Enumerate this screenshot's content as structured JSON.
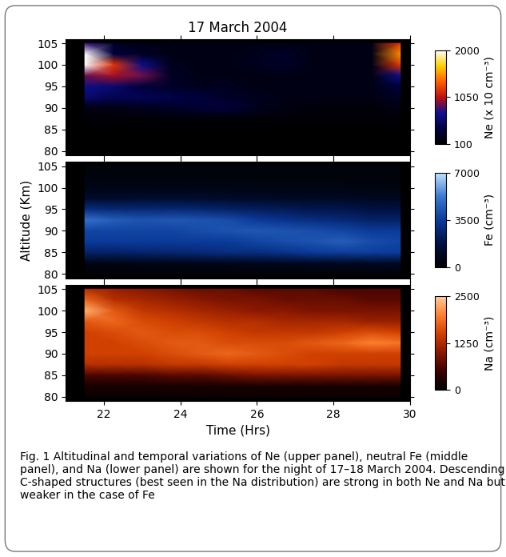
{
  "chart_data": [
    {
      "type": "heatmap",
      "title": "17 March 2004",
      "tick_labels": "y",
      "x": [
        21.5,
        22.25,
        23,
        23.75,
        24.5,
        25.25,
        26,
        26.75,
        27.5,
        28.25,
        29,
        29.75
      ],
      "y": [
        80,
        82.5,
        85,
        87.5,
        90,
        92.5,
        95,
        97.5,
        100,
        102.5,
        105
      ],
      "xlim": [
        21,
        30
      ],
      "xticks": [
        22,
        24,
        26,
        28,
        30
      ],
      "ylim": [
        79,
        106
      ],
      "yticks": [
        80,
        85,
        90,
        95,
        100,
        105
      ],
      "colorbar_label": "Ne (x 10 cm⁻³)",
      "colorbar_range": [
        100,
        2000
      ],
      "colorbar_ticks": [
        100,
        1050,
        2000
      ],
      "values": [
        [
          100,
          100,
          100,
          100,
          100,
          100,
          100,
          100,
          100,
          100,
          100,
          100
        ],
        [
          100,
          100,
          100,
          100,
          100,
          100,
          100,
          100,
          100,
          100,
          100,
          100
        ],
        [
          120,
          120,
          120,
          120,
          120,
          120,
          120,
          120,
          120,
          120,
          120,
          120
        ],
        [
          130,
          130,
          130,
          130,
          130,
          130,
          130,
          130,
          130,
          130,
          130,
          130
        ],
        [
          200,
          200,
          250,
          300,
          350,
          400,
          250,
          200,
          150,
          150,
          150,
          200
        ],
        [
          600,
          500,
          500,
          450,
          400,
          300,
          250,
          200,
          200,
          200,
          200,
          300
        ],
        [
          700,
          600,
          400,
          300,
          250,
          250,
          200,
          200,
          200,
          200,
          200,
          400
        ],
        [
          900,
          1000,
          900,
          300,
          200,
          200,
          200,
          200,
          200,
          200,
          200,
          700
        ],
        [
          2000,
          1200,
          700,
          250,
          200,
          200,
          250,
          300,
          200,
          200,
          200,
          1200
        ],
        [
          2000,
          400,
          300,
          200,
          200,
          200,
          250,
          300,
          200,
          200,
          200,
          1500
        ],
        [
          800,
          300,
          200,
          200,
          200,
          200,
          200,
          200,
          200,
          200,
          200,
          1200
        ]
      ]
    },
    {
      "type": "heatmap",
      "ylabel": "Altitude (Km)",
      "tick_labels": "y",
      "x": [
        21.5,
        22.25,
        23,
        23.75,
        24.5,
        25.25,
        26,
        26.75,
        27.5,
        28.25,
        29,
        29.75
      ],
      "y": [
        80,
        82.5,
        85,
        87.5,
        90,
        92.5,
        95,
        97.5,
        100,
        102.5,
        105
      ],
      "xlim": [
        21,
        30
      ],
      "xticks": [
        22,
        24,
        26,
        28,
        30
      ],
      "ylim": [
        79,
        106
      ],
      "yticks": [
        80,
        85,
        90,
        95,
        100,
        105
      ],
      "colorbar_label": "Fe (cm⁻³)",
      "colorbar_range": [
        0,
        7000
      ],
      "colorbar_ticks": [
        0,
        3500,
        7000
      ],
      "values": [
        [
          200,
          200,
          200,
          200,
          200,
          200,
          200,
          200,
          200,
          200,
          200,
          200
        ],
        [
          500,
          500,
          600,
          600,
          700,
          700,
          800,
          800,
          900,
          900,
          1000,
          1000
        ],
        [
          2500,
          2500,
          2600,
          2700,
          2800,
          3000,
          3000,
          3200,
          3500,
          3600,
          3600,
          3500
        ],
        [
          3500,
          3500,
          3500,
          3500,
          3500,
          3500,
          3800,
          4000,
          4200,
          4500,
          4000,
          3800
        ],
        [
          3800,
          3800,
          3800,
          3800,
          4000,
          4200,
          4300,
          4200,
          4000,
          3800,
          3500,
          3500
        ],
        [
          5000,
          4500,
          4200,
          4300,
          4200,
          4000,
          3500,
          3200,
          3000,
          2800,
          2500,
          2500
        ],
        [
          3000,
          2800,
          2800,
          2800,
          2700,
          2500,
          2300,
          2200,
          2000,
          2000,
          1800,
          1800
        ],
        [
          1200,
          1200,
          1300,
          1300,
          1300,
          1200,
          1100,
          1000,
          1000,
          1000,
          900,
          900
        ],
        [
          600,
          600,
          600,
          600,
          600,
          500,
          500,
          500,
          500,
          500,
          400,
          400
        ],
        [
          400,
          300,
          300,
          300,
          300,
          300,
          300,
          300,
          300,
          300,
          300,
          300
        ],
        [
          300,
          300,
          300,
          300,
          300,
          300,
          300,
          300,
          300,
          300,
          300,
          300
        ]
      ]
    },
    {
      "type": "heatmap",
      "xlabel": "Time (Hrs)",
      "x": [
        21.5,
        22.25,
        23,
        23.75,
        24.5,
        25.25,
        26,
        26.75,
        27.5,
        28.25,
        29,
        29.75
      ],
      "y": [
        80,
        82.5,
        85,
        87.5,
        90,
        92.5,
        95,
        97.5,
        100,
        102.5,
        105
      ],
      "xlim": [
        21,
        30
      ],
      "xticks": [
        22,
        24,
        26,
        28,
        30
      ],
      "ylim": [
        79,
        106
      ],
      "yticks": [
        80,
        85,
        90,
        95,
        100,
        105
      ],
      "colorbar_label": "Na (cm⁻³)",
      "colorbar_range": [
        0,
        2500
      ],
      "colorbar_ticks": [
        0,
        1250,
        2500
      ],
      "values": [
        [
          100,
          100,
          100,
          100,
          100,
          100,
          100,
          100,
          100,
          100,
          100,
          100
        ],
        [
          200,
          200,
          200,
          200,
          200,
          200,
          200,
          200,
          200,
          200,
          200,
          200
        ],
        [
          600,
          600,
          600,
          700,
          700,
          800,
          900,
          900,
          900,
          900,
          900,
          900
        ],
        [
          1300,
          1300,
          1300,
          1400,
          1400,
          1500,
          1500,
          1500,
          1500,
          1400,
          1400,
          1400
        ],
        [
          1500,
          1500,
          1500,
          1600,
          1700,
          1800,
          1700,
          1600,
          1500,
          1500,
          1500,
          1500
        ],
        [
          1500,
          1500,
          1600,
          1700,
          1700,
          1600,
          1600,
          1600,
          1700,
          1800,
          2000,
          1900
        ],
        [
          1500,
          1600,
          1700,
          1600,
          1600,
          1500,
          1400,
          1400,
          1400,
          1500,
          1600,
          1500
        ],
        [
          1700,
          1800,
          1600,
          1500,
          1400,
          1300,
          1300,
          1200,
          1200,
          1200,
          1100,
          1100
        ],
        [
          2300,
          1700,
          1400,
          1300,
          1200,
          1100,
          1000,
          1000,
          900,
          900,
          900,
          900
        ],
        [
          1800,
          1300,
          1200,
          1100,
          1000,
          900,
          900,
          800,
          800,
          800,
          700,
          700
        ],
        [
          1300,
          1100,
          1000,
          900,
          800,
          800,
          700,
          700,
          700,
          600,
          600,
          600
        ]
      ]
    }
  ],
  "caption": "Fig. 1 Altitudinal and temporal variations of Ne (upper panel), neutral Fe (middle panel), and Na (lower panel) are shown for the night of 17–18 March 2004. Descending C-shaped structures (best seen in the Na distribution) are strong in both Ne and Na but weaker in the case of Fe"
}
